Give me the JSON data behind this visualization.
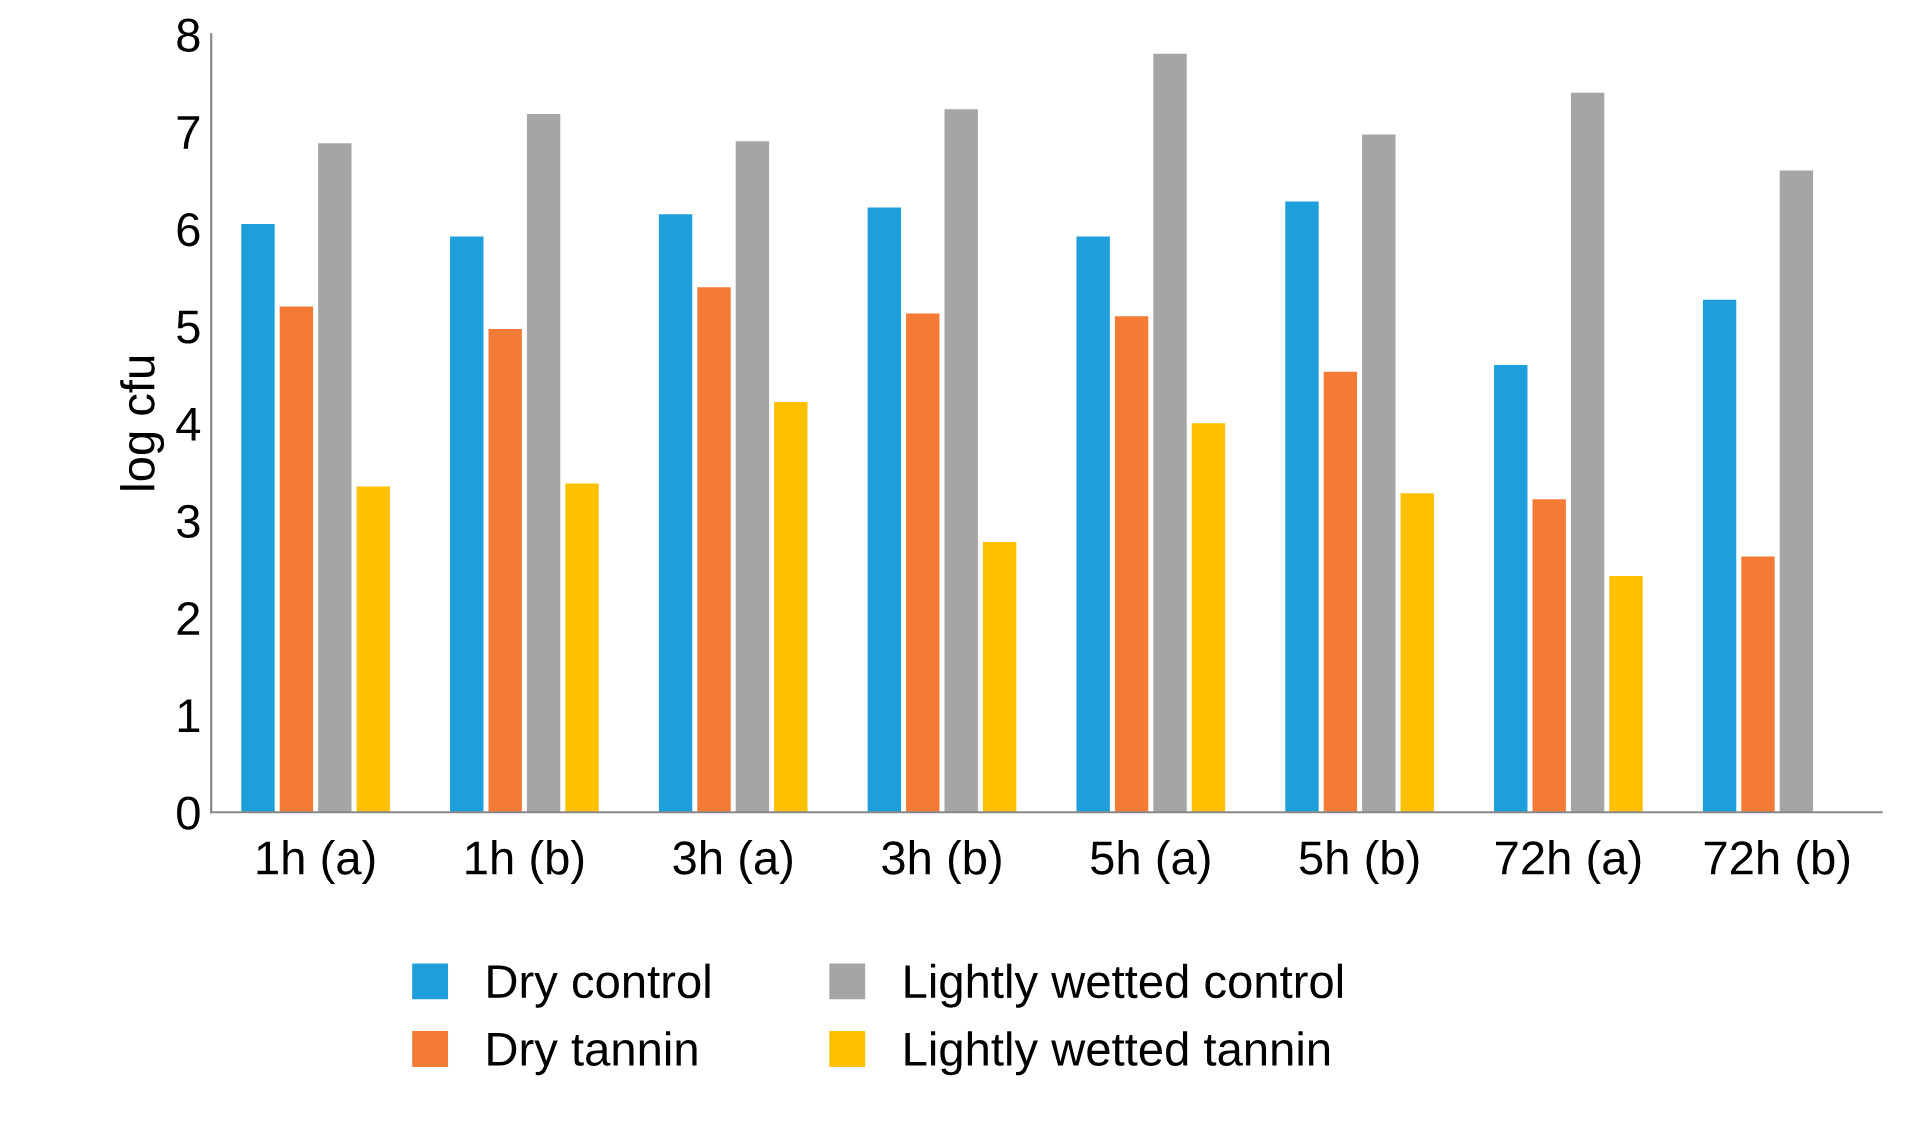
{
  "chart_data": {
    "type": "bar",
    "ylabel": "log cfu",
    "categories": [
      "1h (a)",
      "1h (b)",
      "3h (a)",
      "3h (b)",
      "5h (a)",
      "5h (b)",
      "72h (a)",
      "72h (b)"
    ],
    "series": [
      {
        "name": "Dry control",
        "color": "#1e9fdc",
        "values": [
          6.05,
          5.92,
          6.15,
          6.22,
          5.92,
          6.28,
          4.6,
          5.27
        ]
      },
      {
        "name": "Dry tannin",
        "color": "#f47b35",
        "values": [
          5.2,
          4.97,
          5.4,
          5.13,
          5.1,
          4.53,
          3.22,
          2.63
        ]
      },
      {
        "name": "Lightly wetted control",
        "color": "#a5a5a5",
        "values": [
          6.88,
          7.18,
          6.9,
          7.23,
          7.8,
          6.97,
          7.4,
          6.6
        ]
      },
      {
        "name": "Lightly wetted tannin",
        "color": "#ffc000",
        "values": [
          3.35,
          3.38,
          4.22,
          2.78,
          4.0,
          3.28,
          2.43,
          null
        ]
      }
    ],
    "ylim": [
      0,
      8
    ],
    "yticks": [
      0,
      1,
      2,
      3,
      4,
      5,
      6,
      7,
      8
    ],
    "grid": false,
    "legend": "bottom"
  }
}
